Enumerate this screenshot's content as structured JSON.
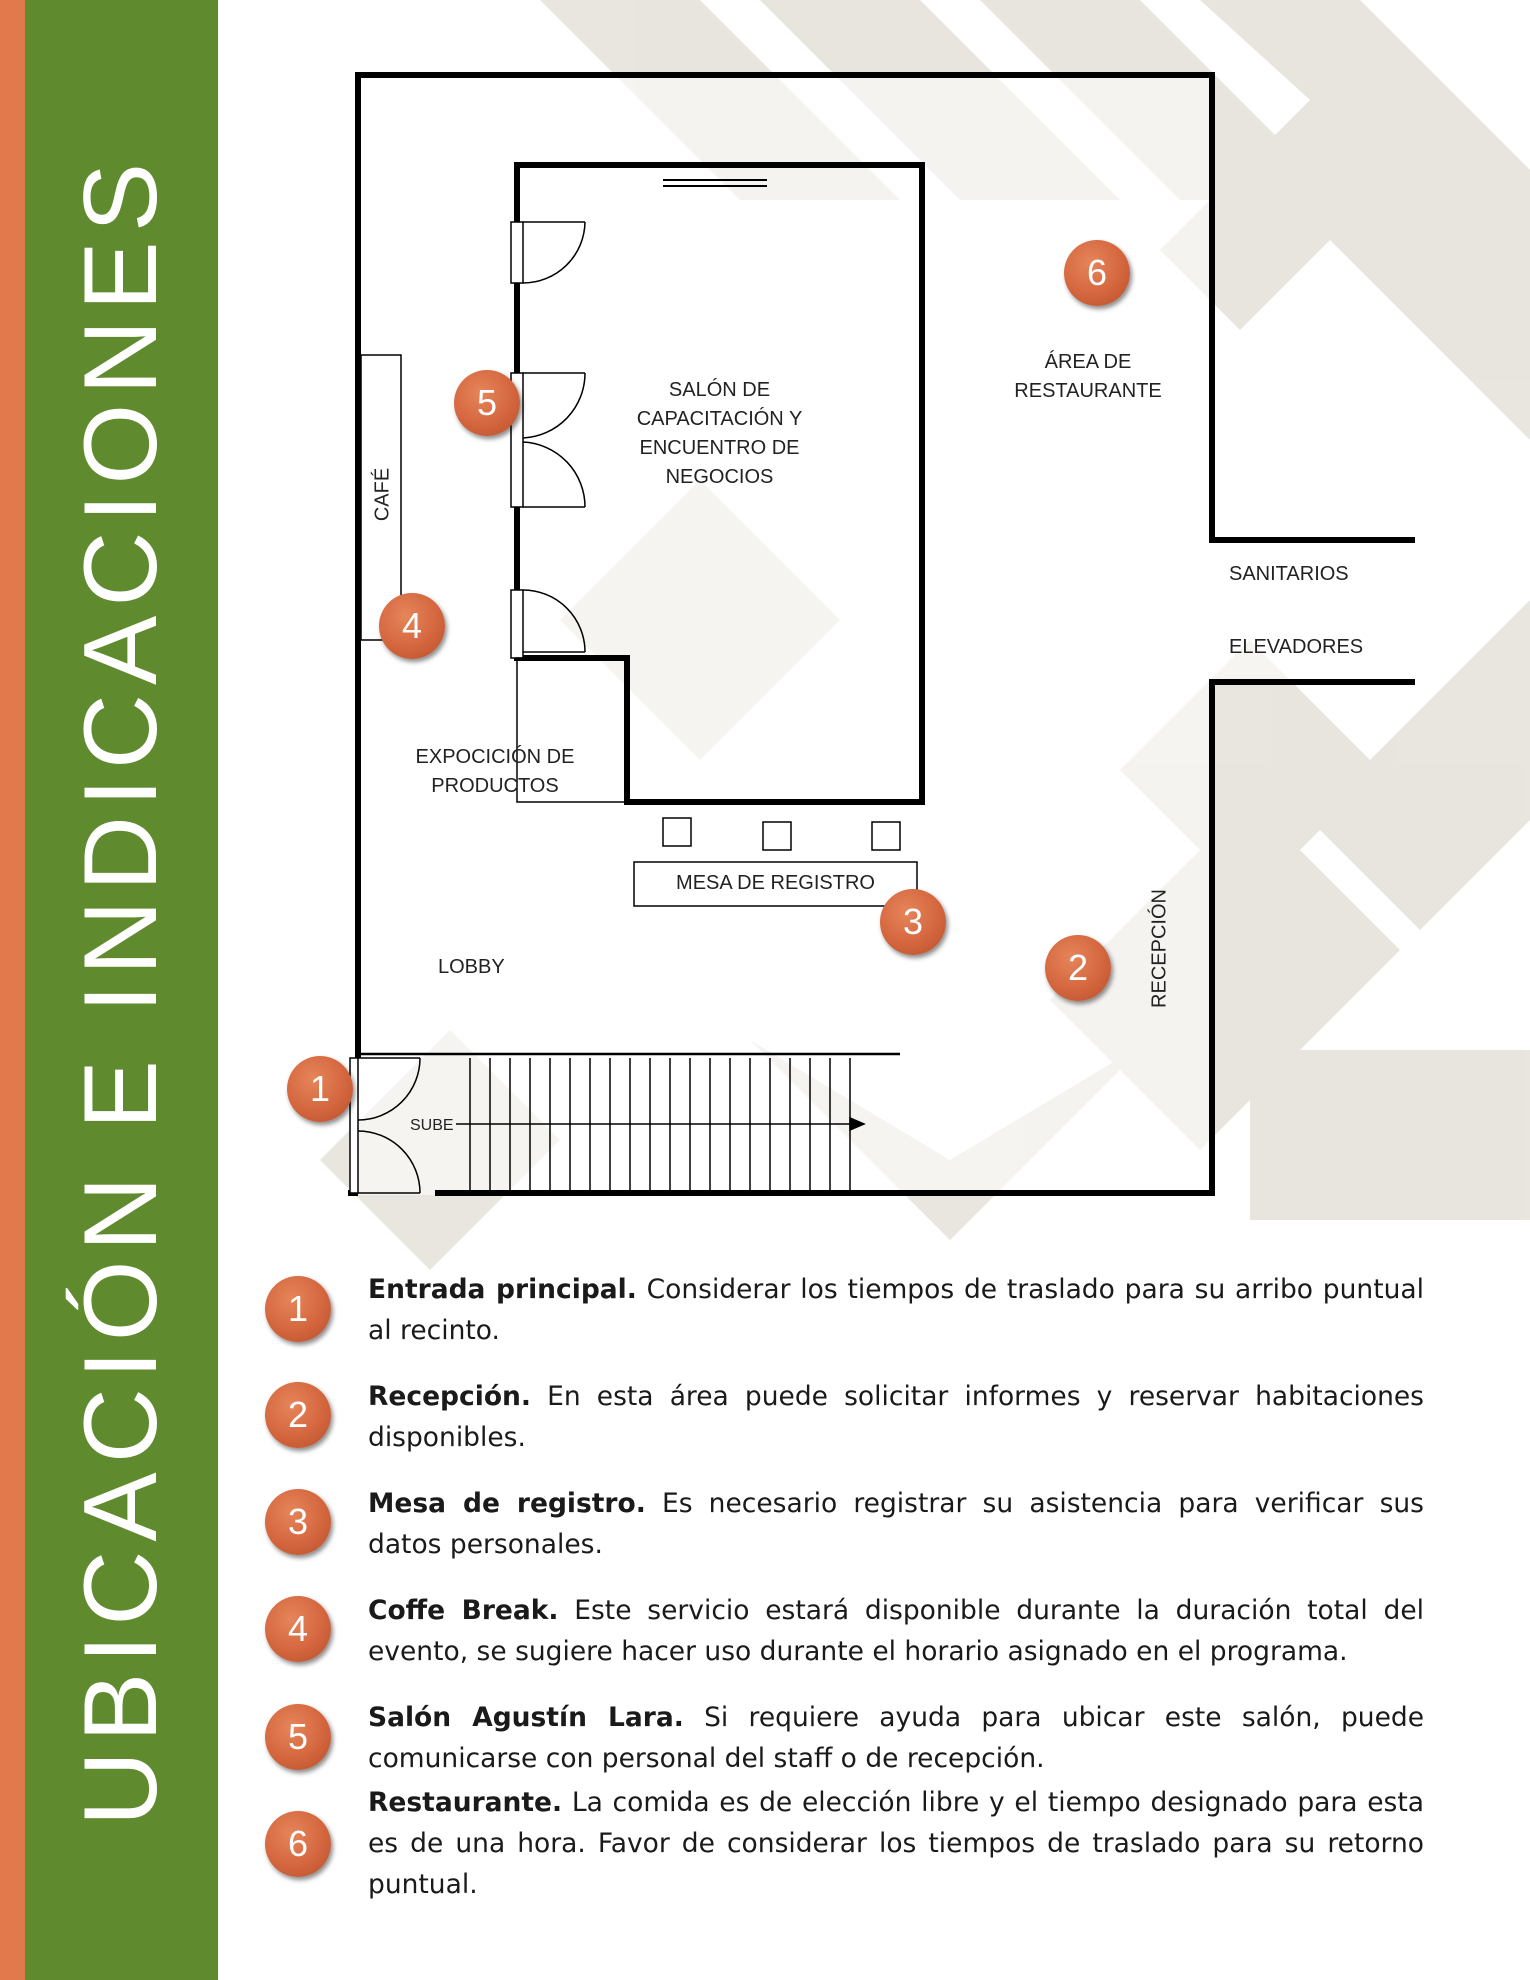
{
  "colors": {
    "accent_orange": "#e07a4c",
    "accent_green": "#5f8a2e",
    "marker": "#d4663e",
    "pattern": "#d6d2c5"
  },
  "sidebar": {
    "title": "UBICACIÓN E INDICACIONES"
  },
  "floor_plan": {
    "labels": {
      "salon": [
        "SALÓN DE",
        "CAPACITACIÓN Y",
        "ENCUENTRO DE",
        "NEGOCIOS"
      ],
      "restaurante": [
        "ÁREA DE",
        "RESTAURANTE"
      ],
      "sanitarios": "SANITARIOS",
      "elevadores": "ELEVADORES",
      "cafe": "CAFÉ",
      "expocicion": [
        "EXPOCICIÓN DE",
        "PRODUCTOS"
      ],
      "mesa_registro": "MESA DE REGISTRO",
      "lobby": "LOBBY",
      "recepcion": "RECEPCIÓN",
      "sube": "SUBE"
    },
    "markers": {
      "m1": "1",
      "m2": "2",
      "m3": "3",
      "m4": "4",
      "m5": "5",
      "m6": "6"
    }
  },
  "legend": [
    {
      "number": "1",
      "title": "Entrada principal.",
      "text": " Considerar los tiempos de traslado para su arribo puntual al recinto."
    },
    {
      "number": "2",
      "title": "Recepción.",
      "text": " En esta área puede solicitar informes y reservar habitaciones disponibles."
    },
    {
      "number": "3",
      "title": "Mesa de registro.",
      "text": " Es necesario registrar su asistencia para verificar sus datos personales."
    },
    {
      "number": "4",
      "title": "Coffe Break.",
      "text": " Este servicio estará disponible durante la duración total del evento, se sugiere hacer uso durante el horario asignado en el programa."
    },
    {
      "number": "5",
      "title": "Salón Agustín Lara.",
      "text": " Si requiere ayuda para ubicar este salón, puede comunicarse con personal del staff o de recepción."
    },
    {
      "number": "6",
      "title": "Restaurante.",
      "text": " La comida es de elección libre y el tiempo designado para esta es de una hora. Favor de considerar los tiempos de traslado para su retorno puntual."
    }
  ]
}
